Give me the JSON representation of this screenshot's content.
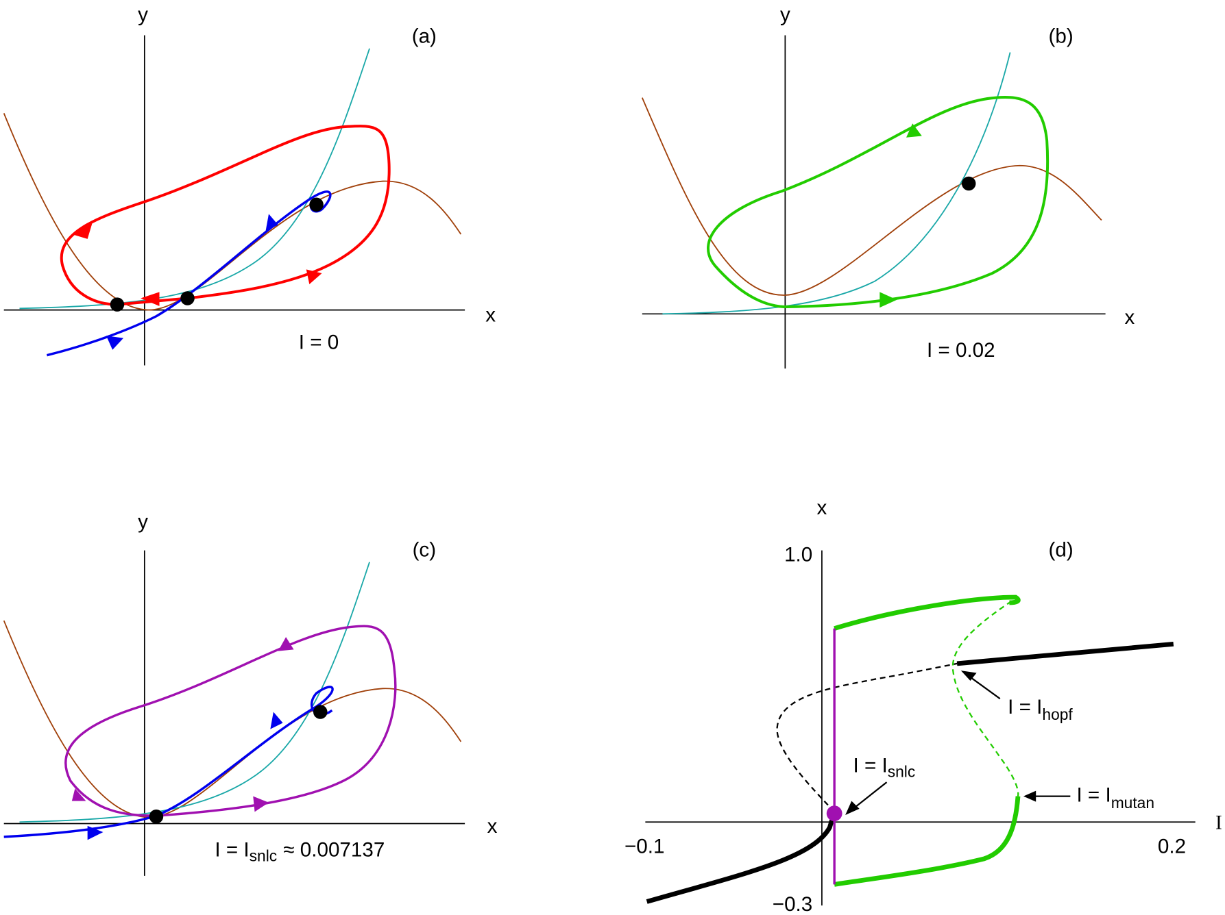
{
  "panels": [
    {
      "label": "(a)",
      "x_axis": "x",
      "y_axis": "y",
      "annotation": {
        "text": "I = 0"
      }
    },
    {
      "label": "(b)",
      "x_axis": "x",
      "y_axis": "y",
      "annotation": {
        "text": "I = 0.02"
      }
    },
    {
      "label": "(c)",
      "x_axis": "x",
      "y_axis": "y",
      "annotation": {
        "text": "I  =  I",
        "subscript": "snlc",
        "suffix": "≈ 0.007137"
      }
    },
    {
      "label": "(d)",
      "x_axis": "I",
      "y_axis": "x",
      "ticks": [
        "1.0",
        "−0.3",
        "−0.1",
        "0.2"
      ],
      "annotations": [
        {
          "text": "I  =  I",
          "subscript": "hopf"
        },
        {
          "text": "I  =  I",
          "subscript": "snlc"
        },
        {
          "text": "I  =  I",
          "subscript": "mutan"
        }
      ]
    }
  ]
}
